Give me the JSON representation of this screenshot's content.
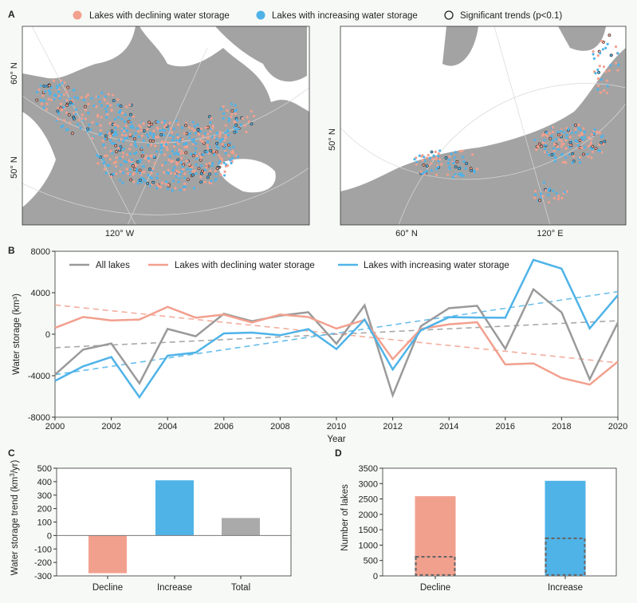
{
  "colors": {
    "decline": "#f2a08e",
    "increase": "#4fb3e8",
    "all": "#9a9a9a",
    "land": "#a3a3a3",
    "ocean": "#ffffff",
    "background": "#f6f9f6"
  },
  "chart_data": [
    {
      "panel": "A",
      "type": "map",
      "legend": [
        {
          "label": "Lakes with declining water storage",
          "marker": "filled-circle",
          "color": "#f2a08e"
        },
        {
          "label": "Lakes with increasing water storage",
          "marker": "filled-circle",
          "color": "#4fb3e8"
        },
        {
          "label": "Significant trends (p<0.1)",
          "label_prefix": "Significant trends (",
          "label_italic": "p",
          "label_suffix": "<0.1)",
          "marker": "open-circle"
        }
      ],
      "maps": [
        {
          "region": "North America",
          "lat_labels": [
            "60° N",
            "50° N"
          ],
          "lon_labels": [
            "120° W"
          ]
        },
        {
          "region": "Eurasia",
          "lat_labels": [
            "50° N"
          ],
          "lon_labels": [
            "60° N",
            "120° E"
          ]
        }
      ]
    },
    {
      "panel": "B",
      "type": "line",
      "xlabel": "Year",
      "ylabel": "Water storage (km³)",
      "xlim": [
        2000,
        2020
      ],
      "ylim": [
        -8000,
        8000
      ],
      "xticks": [
        2000,
        2002,
        2004,
        2006,
        2008,
        2010,
        2012,
        2014,
        2016,
        2018,
        2020
      ],
      "yticks": [
        -8000,
        -4000,
        0,
        4000,
        8000
      ],
      "x": [
        2000,
        2001,
        2002,
        2003,
        2004,
        2005,
        2006,
        2007,
        2008,
        2009,
        2010,
        2011,
        2012,
        2013,
        2014,
        2015,
        2016,
        2017,
        2018,
        2019,
        2020
      ],
      "legend_placement": "top",
      "series": [
        {
          "name": "All lakes",
          "color": "#9a9a9a",
          "values": [
            -3900,
            -1480,
            -900,
            -4740,
            510,
            -200,
            1970,
            1250,
            1790,
            2120,
            -920,
            2790,
            -5890,
            770,
            2510,
            2740,
            -1410,
            4330,
            2100,
            -4350,
            1130
          ],
          "trend": [
            -1300,
            1300
          ]
        },
        {
          "name": "Lakes with declining water storage",
          "color": "#f2a08e",
          "values": [
            610,
            1660,
            1330,
            1410,
            2640,
            1590,
            1890,
            1130,
            1890,
            1660,
            540,
            1380,
            -2410,
            510,
            950,
            1150,
            -2920,
            -2820,
            -4220,
            -4860,
            -2640
          ],
          "trend": [
            2820,
            -2760
          ]
        },
        {
          "name": "Lakes with increasing water storage",
          "color": "#4fb3e8",
          "values": [
            -4500,
            -3100,
            -2200,
            -6070,
            -2070,
            -1770,
            80,
            150,
            -100,
            490,
            -1430,
            1410,
            -3400,
            380,
            1640,
            1610,
            1590,
            7170,
            6320,
            560,
            3760
          ],
          "trend": [
            -3900,
            4100
          ]
        }
      ]
    },
    {
      "panel": "C",
      "type": "bar",
      "ylabel": "Water storage trend (km³/yr)",
      "ylabel_prefix": "Water storage trend (km",
      "ylabel_sup": "3",
      "ylabel_suffix": "/yr)",
      "ylim": [
        -300,
        500
      ],
      "yticks": [
        -300,
        -200,
        -100,
        0,
        100,
        200,
        300,
        400,
        500
      ],
      "categories": [
        "Decline",
        "Increase",
        "Total"
      ],
      "values": [
        -280,
        410,
        130
      ],
      "bar_colors": [
        "#f2a08e",
        "#4fb3e8",
        "#aaaaaa"
      ]
    },
    {
      "panel": "D",
      "type": "bar",
      "ylabel": "Number of lakes",
      "ylim": [
        0,
        3500
      ],
      "yticks": [
        0,
        500,
        1000,
        1500,
        2000,
        2500,
        3000,
        3500
      ],
      "categories": [
        "Decline",
        "Increase"
      ],
      "values": [
        2590,
        3090
      ],
      "significant_values": [
        620,
        1220
      ],
      "bar_colors": [
        "#f2a08e",
        "#4fb3e8"
      ]
    }
  ]
}
